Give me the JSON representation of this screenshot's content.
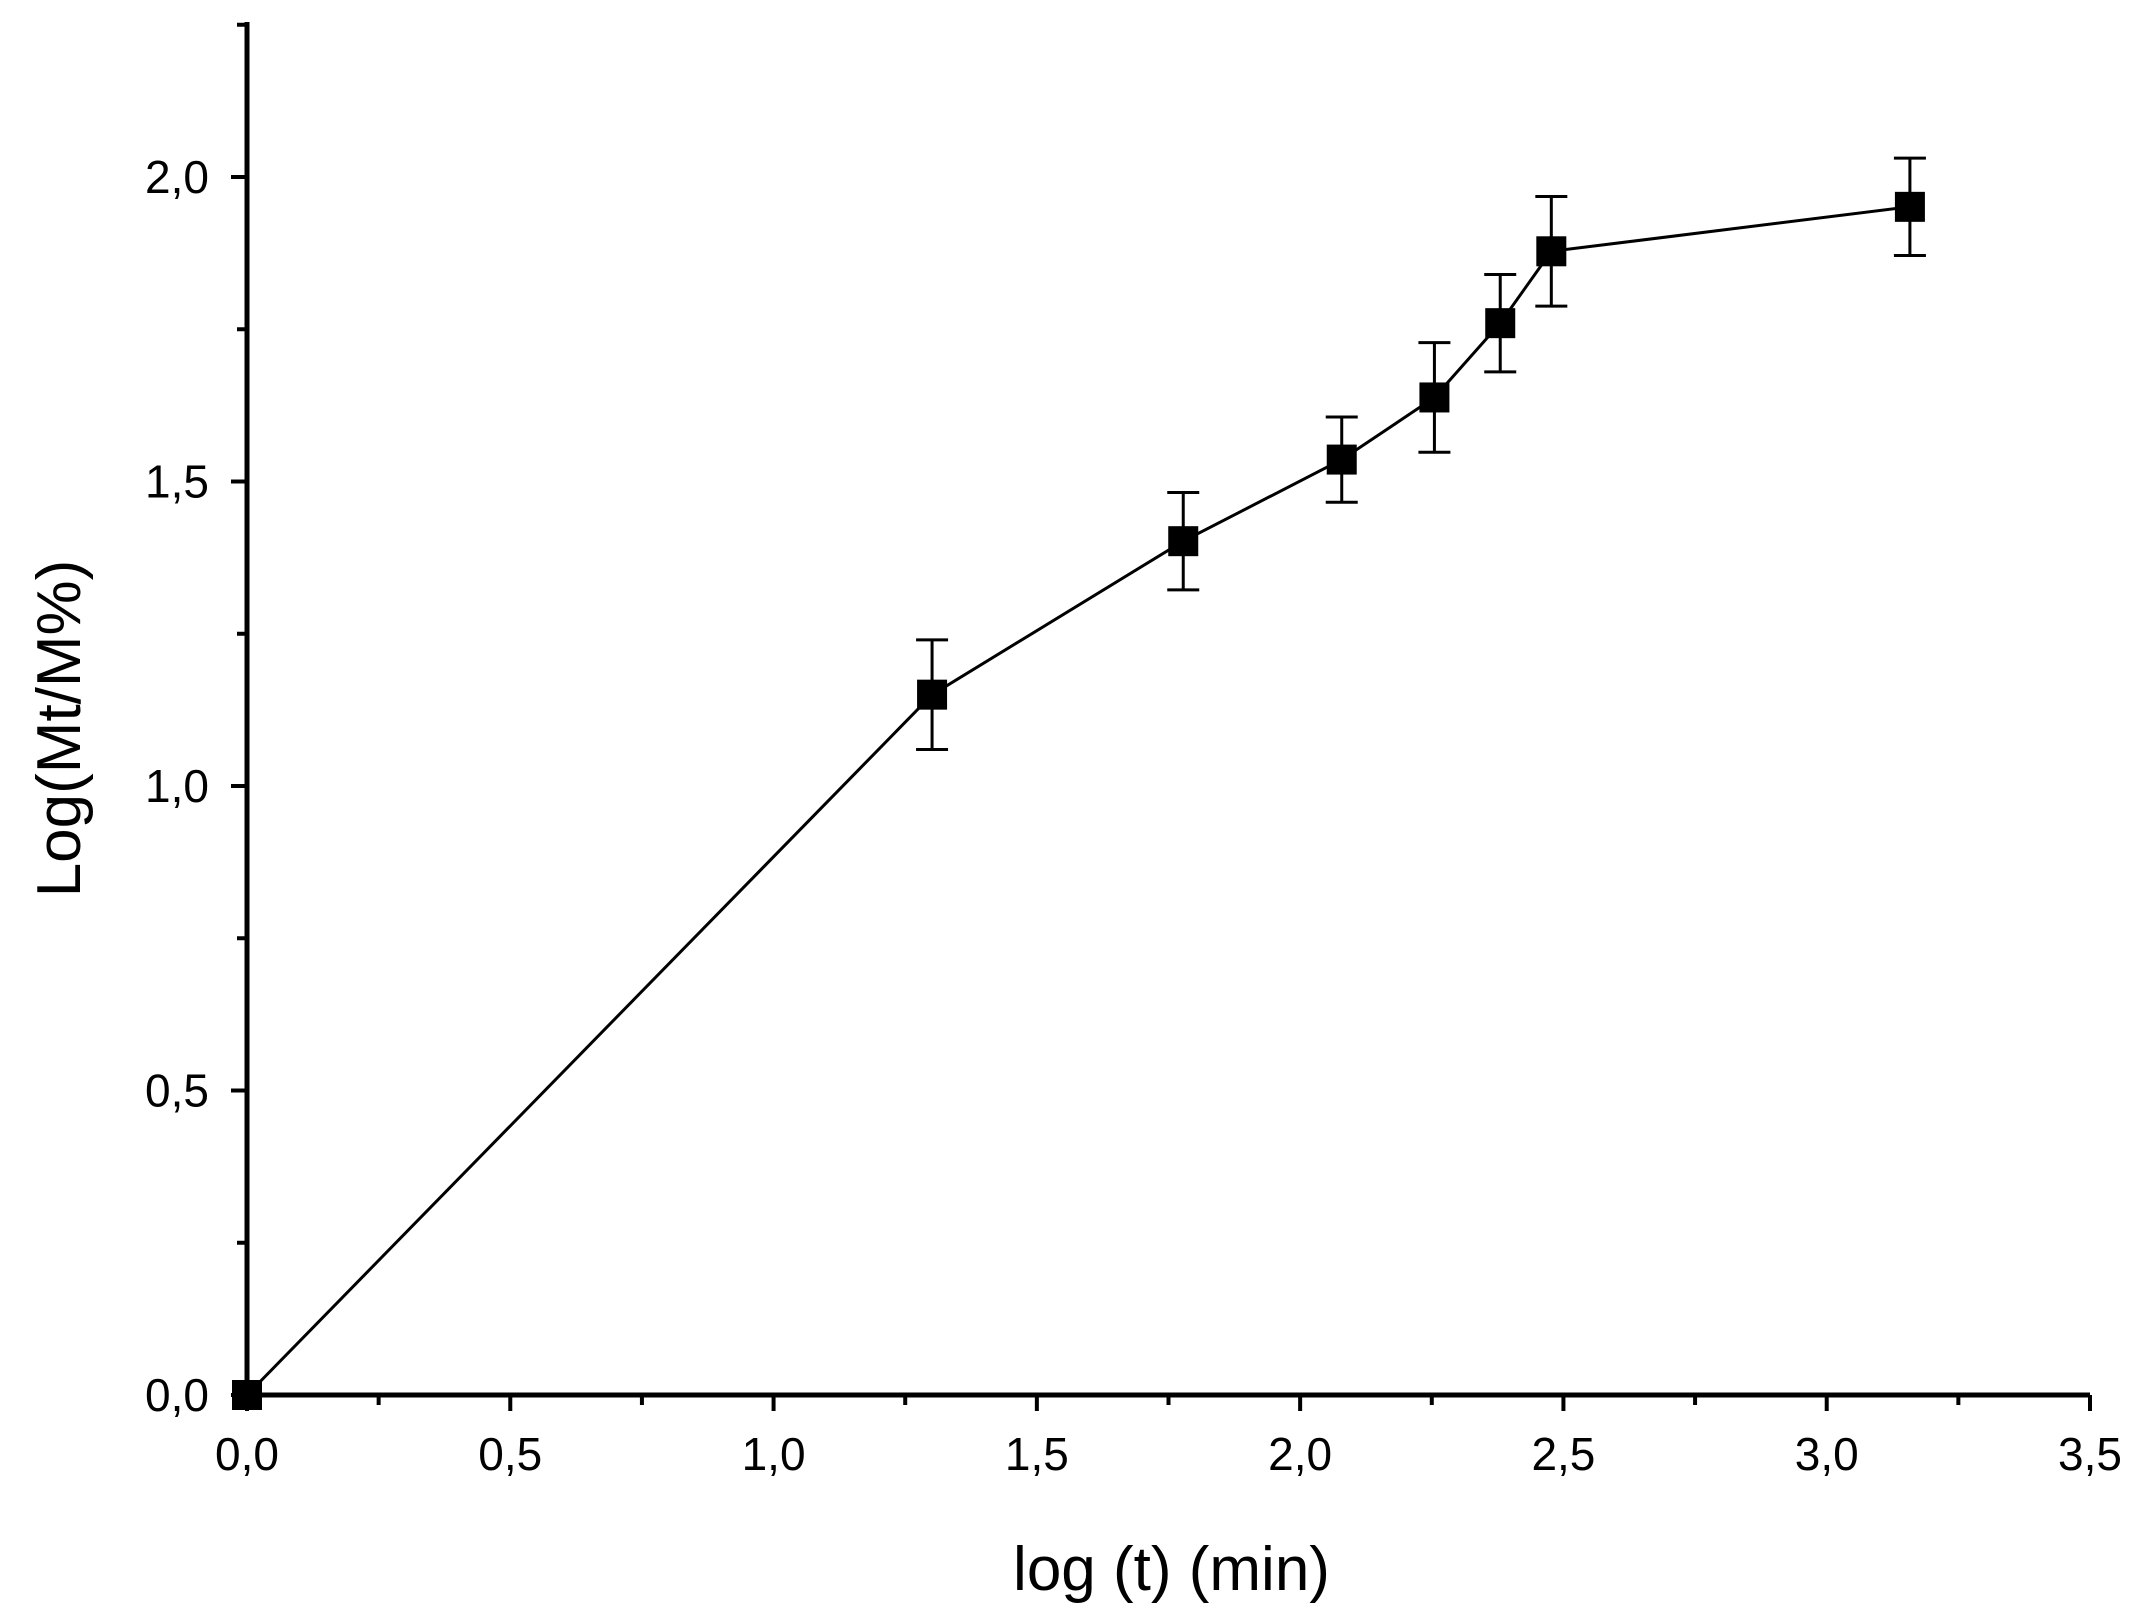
{
  "chart_data": {
    "type": "line",
    "title": "",
    "xlabel": "log (t) (min)",
    "ylabel": "Log(Mt/M%)",
    "xlim": [
      0.0,
      3.5
    ],
    "ylim": [
      0.0,
      2.25
    ],
    "x_major_ticks": [
      0.0,
      0.5,
      1.0,
      1.5,
      2.0,
      2.5,
      3.0,
      3.5
    ],
    "x_minor_ticks": [
      0.25,
      0.75,
      1.25,
      1.75,
      2.25,
      2.75,
      3.25
    ],
    "x_tick_labels": [
      "0,0",
      "0,5",
      "1,0",
      "1,5",
      "2,0",
      "2,5",
      "3,0",
      "3,5"
    ],
    "y_major_ticks": [
      0.0,
      0.5,
      1.0,
      1.5,
      2.0
    ],
    "y_minor_ticks": [
      0.25,
      0.75,
      1.25,
      1.75,
      2.25
    ],
    "y_tick_labels": [
      "0,0",
      "0,5",
      "1,0",
      "1,5",
      "2,0"
    ],
    "grid": false,
    "legend": "none",
    "series": [
      {
        "name": "Log(Mt/M%)",
        "marker": "square",
        "color": "#000000",
        "x": [
          0.0,
          1.301,
          1.778,
          2.079,
          2.255,
          2.38,
          2.477,
          3.158
        ],
        "y": [
          0.0,
          1.15,
          1.402,
          1.536,
          1.638,
          1.76,
          1.878,
          1.951
        ],
        "error": [
          0.0,
          0.09,
          0.08,
          0.07,
          0.09,
          0.08,
          0.09,
          0.08
        ]
      }
    ]
  }
}
